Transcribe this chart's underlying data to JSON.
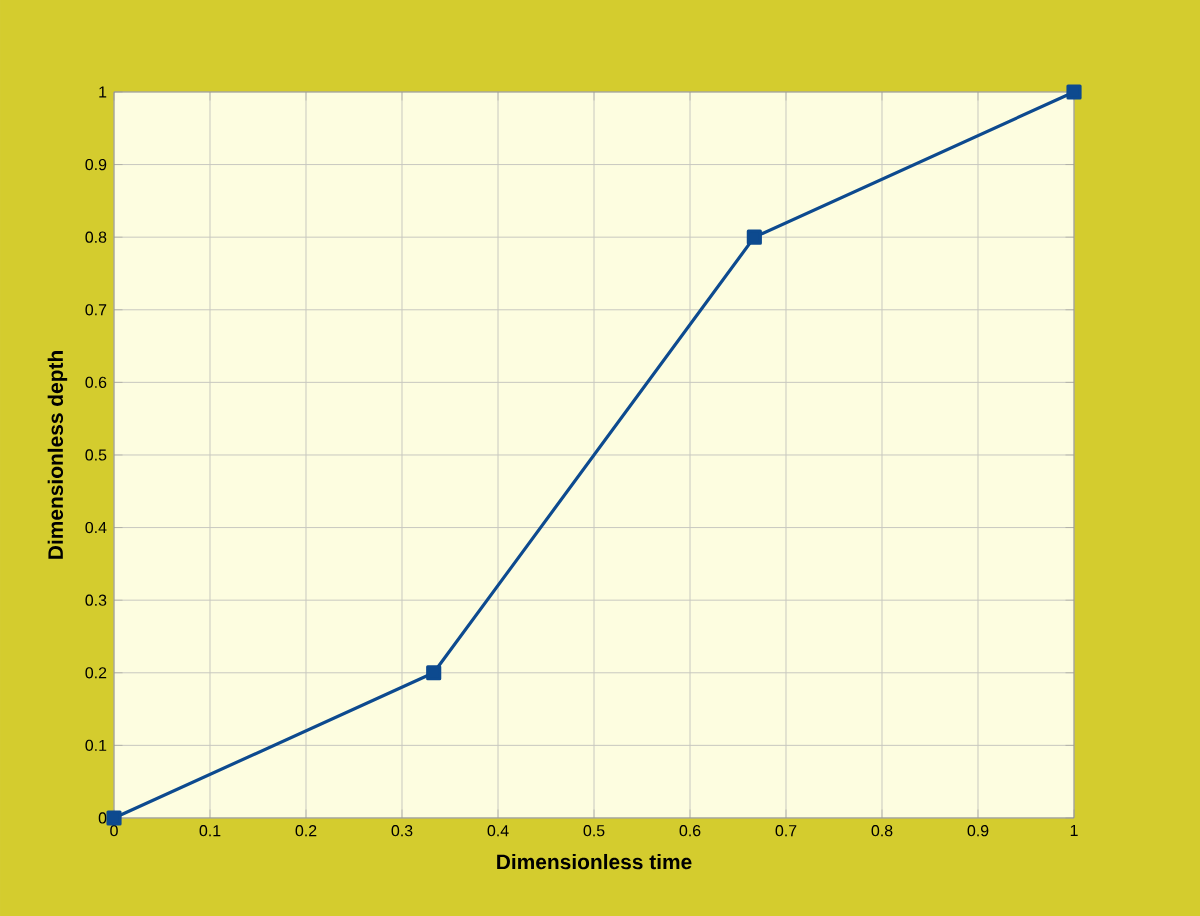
{
  "chart_data": {
    "type": "line",
    "xlabel": "Dimensionless time",
    "ylabel": "Dimensionless depth",
    "x": [
      0,
      0.333,
      0.667,
      1
    ],
    "series": [
      {
        "color": "#0d4a8f",
        "values": [
          0,
          0.2,
          0.8,
          1
        ]
      }
    ],
    "xlim": [
      0,
      1
    ],
    "ylim": [
      0,
      1
    ],
    "xticks": [
      0,
      0.1,
      0.2,
      0.3,
      0.4,
      0.5,
      0.6,
      0.7,
      0.8,
      0.9,
      1
    ],
    "yticks": [
      0,
      0.1,
      0.2,
      0.3,
      0.4,
      0.5,
      0.6,
      0.7,
      0.8,
      0.9,
      1
    ],
    "grid": true,
    "marker": "square",
    "line_style": "solid"
  }
}
